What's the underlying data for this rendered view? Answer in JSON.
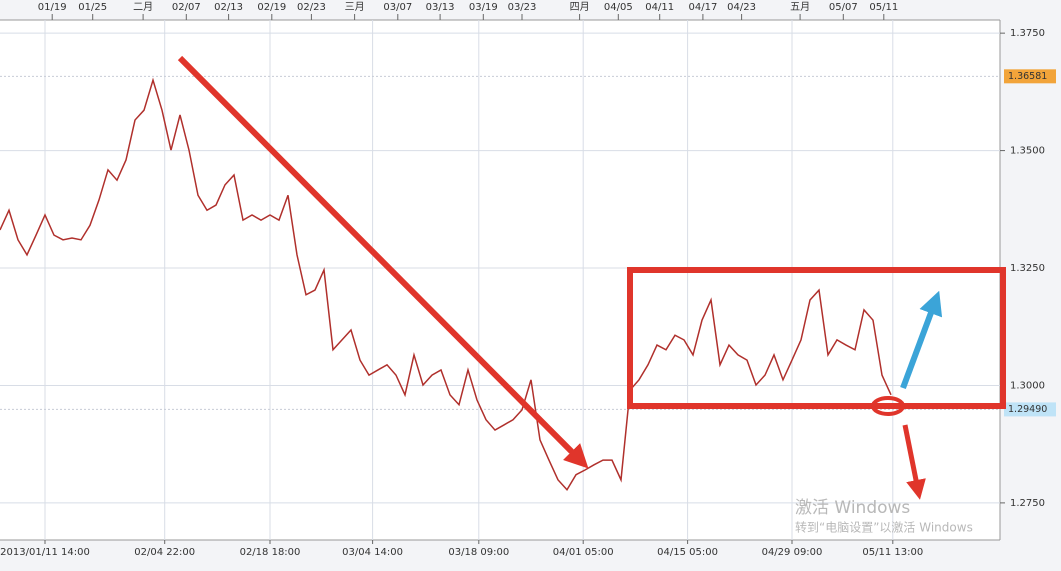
{
  "chart_data": {
    "type": "line",
    "series": [
      {
        "name": "Price",
        "color": "#b0302c",
        "values": [
          1.3331,
          1.3373,
          1.331,
          1.3278,
          1.332,
          1.3363,
          1.332,
          1.331,
          1.3314,
          1.331,
          1.3341,
          1.3395,
          1.3459,
          1.3437,
          1.348,
          1.3565,
          1.3586,
          1.365,
          1.3586,
          1.3501,
          1.3576,
          1.3501,
          1.3405,
          1.3373,
          1.3384,
          1.3427,
          1.3448,
          1.3352,
          1.3363,
          1.3352,
          1.3363,
          1.3352,
          1.3405,
          1.3278,
          1.3193,
          1.3203,
          1.3246,
          1.3076,
          1.3097,
          1.3118,
          1.3054,
          1.3022,
          1.3033,
          1.3044,
          1.3022,
          1.298,
          1.3065,
          1.3001,
          1.3022,
          1.3033,
          1.298,
          1.2959,
          1.3033,
          1.2969,
          1.2927,
          1.2905,
          1.2916,
          1.2927,
          1.2948,
          1.3012,
          1.2884,
          1.2841,
          1.2799,
          1.2778,
          1.281,
          1.282,
          1.2831,
          1.2841,
          1.2841,
          1.2799,
          1.299,
          1.3012,
          1.3044,
          1.3086,
          1.3076,
          1.3107,
          1.3097,
          1.3065,
          1.3139,
          1.3182,
          1.3044,
          1.3086,
          1.3065,
          1.3054,
          1.3001,
          1.3022,
          1.3065,
          1.3012,
          1.3054,
          1.3097,
          1.3182,
          1.3203,
          1.3065,
          1.3097,
          1.3086,
          1.3076,
          1.3161,
          1.3139,
          1.3022,
          1.298
        ]
      }
    ],
    "xlim": [
      0,
      111
    ],
    "ylim": [
      1.2671,
      1.3778
    ],
    "yticks": [
      {
        "value": 1.375,
        "label": "1.3750"
      },
      {
        "value": 1.35,
        "label": "1.3500"
      },
      {
        "value": 1.325,
        "label": "1.3250"
      },
      {
        "value": 1.3,
        "label": "1.3000"
      },
      {
        "value": 1.275,
        "label": "1.2750"
      }
    ],
    "top_xticks": [
      {
        "value": 5.8,
        "label": "01/19"
      },
      {
        "value": 10.3,
        "label": "01/25"
      },
      {
        "value": 15.9,
        "label": "二月"
      },
      {
        "value": 20.7,
        "label": "02/07"
      },
      {
        "value": 25.4,
        "label": "02/13"
      },
      {
        "value": 30.2,
        "label": "02/19"
      },
      {
        "value": 34.6,
        "label": "02/23"
      },
      {
        "value": 39.4,
        "label": "三月"
      },
      {
        "value": 44.2,
        "label": "03/07"
      },
      {
        "value": 48.9,
        "label": "03/13"
      },
      {
        "value": 53.7,
        "label": "03/19"
      },
      {
        "value": 58,
        "label": "03/23"
      },
      {
        "value": 64.4,
        "label": "四月"
      },
      {
        "value": 68.7,
        "label": "04/05"
      },
      {
        "value": 73.3,
        "label": "04/11"
      },
      {
        "value": 78.1,
        "label": "04/17"
      },
      {
        "value": 82.4,
        "label": "04/23"
      },
      {
        "value": 88.9,
        "label": "五月"
      },
      {
        "value": 93.7,
        "label": "05/07"
      },
      {
        "value": 98.2,
        "label": "05/11"
      }
    ],
    "xticks": [
      {
        "value": 5,
        "label": "2013/01/11 14:00"
      },
      {
        "value": 18.3,
        "label": "02/04 22:00"
      },
      {
        "value": 30,
        "label": "02/18 18:00"
      },
      {
        "value": 41.4,
        "label": "03/04 14:00"
      },
      {
        "value": 53.2,
        "label": "03/18 09:00"
      },
      {
        "value": 64.8,
        "label": "04/01 05:00"
      },
      {
        "value": 76.4,
        "label": "04/15 05:00"
      },
      {
        "value": 88,
        "label": "04/29 09:00"
      },
      {
        "value": 99.2,
        "label": "05/11 13:00"
      }
    ],
    "price_markers": [
      {
        "value": 1.36581,
        "color": "#f2a43a"
      },
      {
        "value": {
          "value": 1.2949,
          "label": "1.29490"
        },
        "color": "#bfe3f7"
      }
    ],
    "grid": true,
    "watermark": {
      "title": "激活 Windows",
      "subtitle": "转到“电脑设置”以激活 Windows"
    }
  }
}
